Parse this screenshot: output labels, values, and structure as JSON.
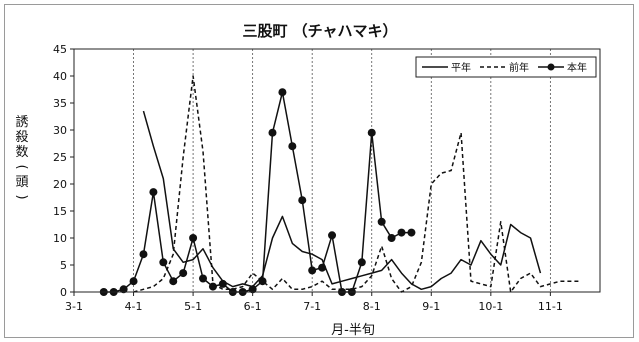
{
  "chart_data": {
    "type": "line",
    "title": "三股町 （チャハマキ）",
    "xlabel": "月-半旬",
    "ylabel": "誘殺数(頭)",
    "ylim": [
      0,
      45
    ],
    "yticks": [
      0,
      5,
      10,
      15,
      20,
      25,
      30,
      35,
      40,
      45
    ],
    "xticks": [
      {
        "label": "3-1",
        "pos": 0
      },
      {
        "label": "4-1",
        "pos": 6
      },
      {
        "label": "5-1",
        "pos": 12
      },
      {
        "label": "6-1",
        "pos": 18
      },
      {
        "label": "7-1",
        "pos": 24
      },
      {
        "label": "8-1",
        "pos": 30
      },
      {
        "label": "9-1",
        "pos": 36
      },
      {
        "label": "10-1",
        "pos": 42
      },
      {
        "label": "11-1",
        "pos": 48
      }
    ],
    "xlim": [
      0,
      53
    ],
    "vlines": [
      6,
      12,
      18,
      24,
      30,
      36,
      42,
      48
    ],
    "legend_position": "top-right",
    "series": [
      {
        "name": "平年",
        "style": "solid",
        "x": [
          7,
          8,
          9,
          10,
          11,
          12,
          13,
          14,
          15,
          16,
          17,
          18,
          19,
          20,
          21,
          22,
          23,
          24,
          25,
          26,
          27,
          28,
          29,
          30,
          31,
          32,
          33,
          34,
          35,
          36,
          37,
          38,
          39,
          40,
          41,
          42,
          43,
          44,
          45,
          46,
          47
        ],
        "y": [
          33.5,
          27,
          21,
          8,
          5.5,
          6,
          8,
          4.5,
          2,
          1,
          1.5,
          1,
          3,
          10,
          14,
          9,
          7.5,
          7,
          6,
          1.5,
          2,
          2.5,
          3,
          3.5,
          4,
          6,
          3.5,
          1.5,
          0.5,
          1,
          2.5,
          3.5,
          6,
          5,
          9.5,
          7,
          5,
          12.5,
          11,
          10,
          3.5
        ]
      },
      {
        "name": "前年",
        "style": "dashed",
        "x": [
          6,
          7,
          8,
          9,
          10,
          11,
          12,
          13,
          14,
          15,
          16,
          17,
          18,
          19,
          20,
          21,
          22,
          23,
          24,
          25,
          26,
          27,
          28,
          29,
          30,
          31,
          32,
          33,
          34,
          35,
          36,
          37,
          38,
          39,
          40,
          41,
          42,
          43,
          44,
          45,
          46,
          47,
          48,
          49,
          50,
          51
        ],
        "y": [
          0,
          0.5,
          1,
          2.5,
          7,
          25,
          40,
          26,
          1.5,
          0.5,
          0.5,
          1,
          3.5,
          2,
          0.5,
          2.5,
          0.5,
          0.5,
          1,
          2,
          0.5,
          0.5,
          0.5,
          1,
          3,
          8.5,
          2.5,
          0,
          1,
          5.5,
          20,
          22,
          22.5,
          29.5,
          2,
          1.5,
          1,
          13,
          0,
          2.5,
          3.5,
          1,
          1.5,
          2,
          2,
          2
        ]
      },
      {
        "name": "本年",
        "style": "solid-dot",
        "x": [
          3,
          4,
          5,
          6,
          7,
          8,
          9,
          10,
          11,
          12,
          13,
          14,
          15,
          16,
          17,
          18,
          19,
          20,
          21,
          22,
          23,
          24,
          25,
          26,
          27,
          28,
          29,
          30,
          31,
          32,
          33,
          34
        ],
        "y": [
          0,
          0,
          0.5,
          2,
          7,
          18.5,
          5.5,
          2,
          3.5,
          10,
          2.5,
          1,
          1.5,
          0,
          0,
          0.5,
          2,
          29.5,
          37,
          27,
          17,
          4,
          4.5,
          10.5,
          0,
          0,
          5.5,
          29.5,
          13,
          10,
          11,
          11
        ]
      }
    ]
  }
}
